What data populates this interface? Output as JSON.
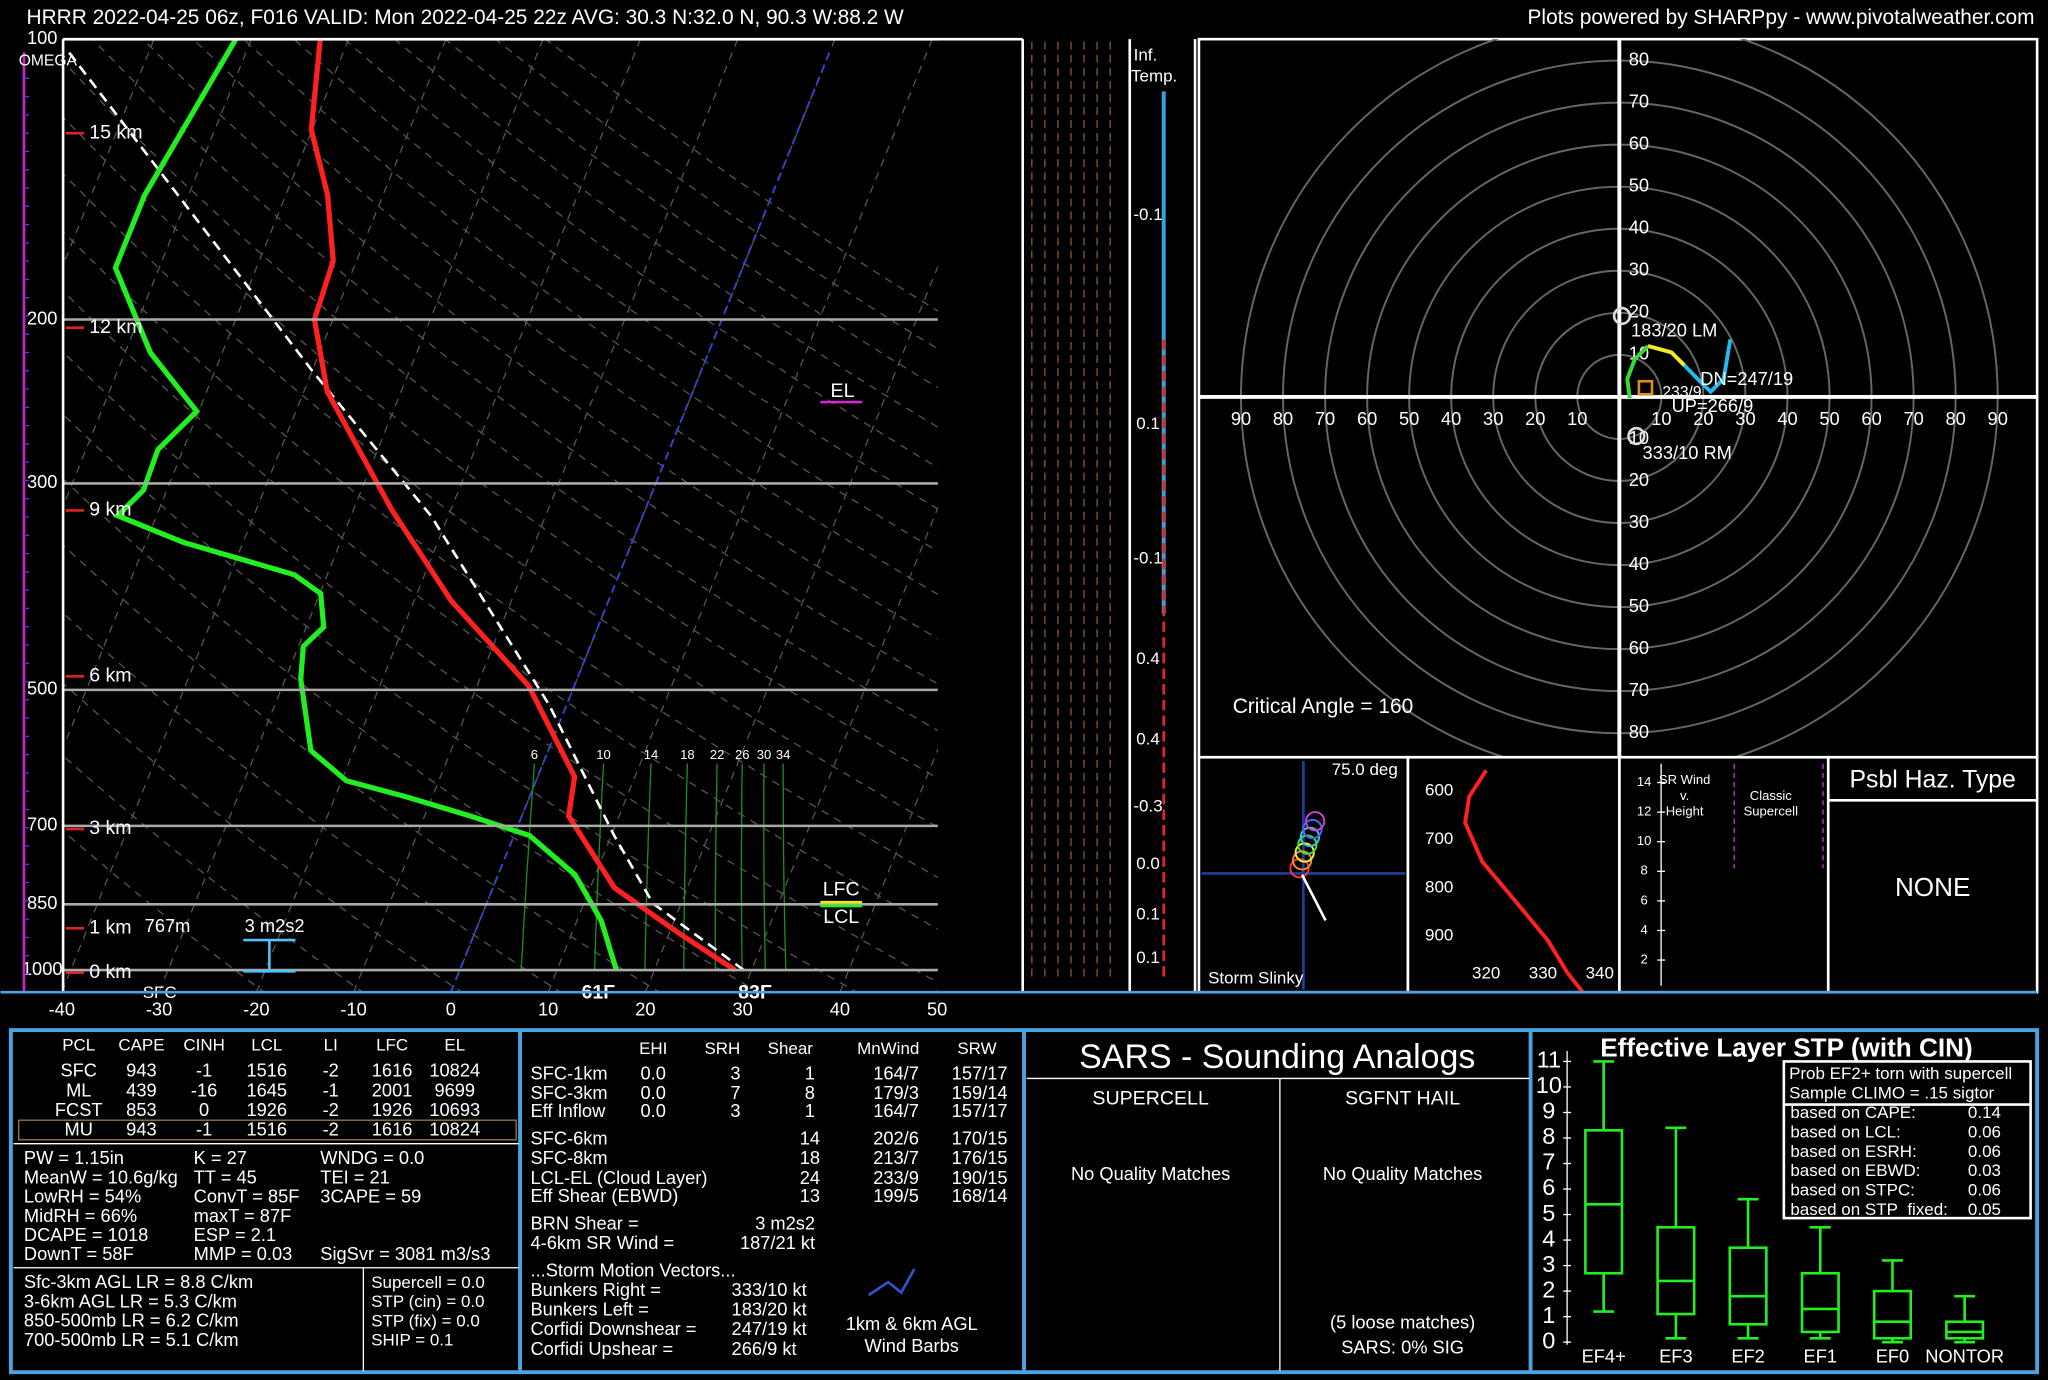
{
  "header": {
    "title": "HRRR 2022-04-25 06z, F016  VALID: Mon 2022-04-25 22z  AVG: 30.3 N:32.0 N, 90.3 W:88.2 W",
    "credit": "Plots powered by SHARPpy - www.pivotalweather.com"
  },
  "skewt": {
    "pressure_ticks": [
      100,
      200,
      300,
      500,
      700,
      850,
      1000
    ],
    "temp_ticks": [
      -40,
      -30,
      -20,
      -10,
      0,
      10,
      20,
      30,
      40,
      50
    ],
    "height_labels": [
      "15 km",
      "12 km",
      "9 km",
      "6 km",
      "3 km",
      "1 km",
      "0 km"
    ],
    "mixing_ratios": [
      6,
      10,
      14,
      18,
      22,
      26,
      30,
      34
    ],
    "omega": "OMEGA",
    "el": "EL",
    "lfc": "LFC",
    "lcl": "LCL",
    "sfc": "SFC",
    "depth": "767m",
    "srh": "3 m2s2",
    "sfc_dewpoint": "61F",
    "sfc_temp": "83F",
    "temperature": {
      "color": "#ff2020",
      "pressure": [
        1000,
        914,
        816,
        683,
        620,
        495,
        401,
        320,
        239,
        200,
        173,
        147,
        125,
        100
      ],
      "values": [
        28.3,
        21.1,
        12.5,
        4.8,
        3.8,
        -4.7,
        -16.2,
        -26.1,
        -37.6,
        -41.9,
        -42.4,
        -45.7,
        -50.1,
        -52.9
      ]
    },
    "dewpoint": {
      "color": "#22ee22",
      "pressure": [
        1000,
        885,
        790,
        717,
        683,
        651,
        626,
        581,
        487,
        449,
        428,
        394,
        376,
        347,
        325,
        305,
        276,
        251,
        217,
        176,
        147,
        100
      ],
      "values": [
        16.1,
        12.5,
        7.9,
        1.6,
        -5.3,
        -12.8,
        -19.5,
        -24.4,
        -28.4,
        -29.5,
        -28.2,
        -29.9,
        -33.4,
        -46.2,
        -54.0,
        -52.4,
        -52.6,
        -50.2,
        -57.4,
        -64.5,
        -64.5,
        -61.6
      ]
    },
    "parcel": {
      "color": "#ffffff",
      "pressure": [
        1000,
        848,
        717,
        519,
        325,
        228,
        102
      ],
      "values": [
        29.2,
        17.1,
        10.3,
        -1.8,
        -21.8,
        -39.8,
        -78.8
      ]
    }
  },
  "inflow_temp": {
    "title": [
      "Inf.",
      "Temp."
    ],
    "values": [
      "-0.1",
      "0.1",
      "-0.1",
      "0.4",
      "0.4",
      "-0.3",
      "0.0",
      "0.1",
      "0.1"
    ]
  },
  "hodograph": {
    "ring_labels": [
      10,
      20,
      30,
      40,
      50,
      60,
      70,
      80,
      90
    ],
    "lm": "183/20 LM",
    "rm": "333/10 RM",
    "dn": "DN=247/19",
    "up": "UP=266/9",
    "mean": "233/9",
    "critical_angle": "Critical Angle = 160",
    "trace": [
      {
        "color": "#33dd33",
        "u": [
          2.5,
          1.9,
          3.7,
          6.8
        ],
        "v": [
          -0.3,
          4.3,
          9.0,
          12.1
        ]
      },
      {
        "color": "#eeee22",
        "u": [
          6.8,
          12.4,
          15.5
        ],
        "v": [
          12.1,
          10.6,
          7.5
        ]
      },
      {
        "color": "#22bbee",
        "u": [
          15.5,
          18.6,
          21.7,
          24.8,
          26.4
        ],
        "v": [
          7.5,
          4.3,
          1.2,
          4.3,
          13.7
        ]
      }
    ]
  },
  "slinky": {
    "angle": "75.0 deg",
    "title": "Storm Slinky"
  },
  "theta": {
    "pressure_ticks": [
      600,
      700,
      800,
      900
    ],
    "theta_ticks": [
      320,
      330,
      340
    ],
    "pressure": [
      557,
      611,
      665,
      746,
      827,
      908,
      976,
      1016
    ],
    "values": [
      320.0,
      317.0,
      316.3,
      319.3,
      325.1,
      330.8,
      334.3,
      337.0
    ]
  },
  "sr_wind": {
    "height_ticks": [
      2,
      4,
      6,
      8,
      10,
      12,
      14
    ],
    "title": [
      "SR Wind",
      "v.",
      "Height"
    ],
    "classic": [
      "Classic",
      "Supercell"
    ]
  },
  "hazard": {
    "title": "Psbl Haz. Type",
    "value": "NONE"
  },
  "thermo": {
    "headers": [
      "PCL",
      "CAPE",
      "CINH",
      "LCL",
      "LI",
      "LFC",
      "EL"
    ],
    "rows": [
      [
        "SFC",
        "943",
        "-1",
        "1516",
        "-2",
        "1616",
        "10824"
      ],
      [
        "ML",
        "439",
        "-16",
        "1645",
        "-1",
        "2001",
        "9699"
      ],
      [
        "FCST",
        "853",
        "0",
        "1926",
        "-2",
        "1926",
        "10693"
      ],
      [
        "MU",
        "943",
        "-1",
        "1516",
        "-2",
        "1616",
        "10824"
      ]
    ],
    "indices": [
      [
        "PW = 1.15in",
        "MeanW = 10.6g/kg",
        "LowRH = 54%",
        "MidRH = 66%",
        "DCAPE = 1018",
        "DownT = 58F"
      ],
      [
        "K = 27",
        "TT = 45",
        "ConvT = 85F",
        "maxT = 87F",
        "ESP = 2.1",
        "MMP = 0.03"
      ],
      [
        "WNDG = 0.0",
        "TEI = 21",
        "3CAPE = 59",
        "SigSvr = 3081 m3/s3"
      ]
    ],
    "lapse_rates": [
      "Sfc-3km AGL LR = 8.8 C/km",
      "3-6km AGL LR = 5.3 C/km",
      "850-500mb LR = 6.2 C/km",
      "700-500mb LR = 5.1 C/km"
    ],
    "composites": [
      "Supercell = 0.0",
      "STP (cin) = 0.0",
      "STP (fix) = 0.0",
      "SHIP = 0.1"
    ]
  },
  "kinematics": {
    "headers": [
      "EHI",
      "SRH",
      "Shear",
      "MnWind",
      "SRW"
    ],
    "rows": [
      [
        "SFC-1km",
        "0.0",
        "3",
        "1",
        "164/7",
        "157/17"
      ],
      [
        "SFC-3km",
        "0.0",
        "7",
        "8",
        "179/3",
        "159/14"
      ],
      [
        "Eff Inflow",
        "0.0",
        "3",
        "1",
        "164/7",
        "157/17"
      ],
      [
        "SFC-6km",
        null,
        null,
        "14",
        "202/6",
        "170/15"
      ],
      [
        "SFC-8km",
        null,
        null,
        "18",
        "213/7",
        "176/15"
      ],
      [
        "LCL-EL (Cloud Layer)",
        null,
        null,
        "24",
        "233/9",
        "190/15"
      ],
      [
        "Eff Shear (EBWD)",
        null,
        null,
        "13",
        "199/5",
        "168/14"
      ]
    ],
    "brn": [
      "BRN Shear =",
      "3 m2s2"
    ],
    "sr_wind": [
      "4-6km SR Wind =",
      "187/21 kt"
    ],
    "storm_motion_title": "...Storm Motion Vectors...",
    "storm_motion": [
      [
        "Bunkers Right =",
        "333/10 kt"
      ],
      [
        "Bunkers Left =",
        "183/20 kt"
      ],
      [
        "Corfidi Downshear =",
        "247/19 kt"
      ],
      [
        "Corfidi Upshear =",
        "266/9 kt"
      ]
    ],
    "barb_note": [
      "1km & 6km AGL",
      "Wind Barbs"
    ]
  },
  "sars": {
    "title": "SARS - Sounding Analogs",
    "supercell": {
      "title": "SUPERCELL",
      "matches": "No Quality Matches"
    },
    "hail": {
      "title": "SGFNT HAIL",
      "matches": "No Quality Matches",
      "loose": "(5 loose matches)",
      "sig": "SARS: 0% SIG"
    }
  },
  "stp": {
    "title": "Effective Layer STP (with CIN)",
    "ylim": [
      0,
      11
    ],
    "yticks": [
      0,
      1,
      2,
      3,
      4,
      5,
      6,
      7,
      8,
      9,
      10,
      11
    ],
    "categories": [
      "EF4+",
      "EF3",
      "EF2",
      "EF1",
      "EF0",
      "NONTOR"
    ],
    "color": "#22ee22",
    "whisker_low": [
      1.2,
      0.15,
      0.15,
      0.15,
      0,
      0
    ],
    "q1": [
      2.7,
      1.1,
      0.7,
      0.4,
      0.15,
      0.15
    ],
    "median": [
      5.4,
      2.4,
      1.8,
      1.3,
      0.8,
      0.4
    ],
    "q3": [
      8.3,
      4.5,
      3.7,
      2.7,
      2.0,
      0.8
    ],
    "whisker_high": [
      11.0,
      8.4,
      5.6,
      4.5,
      3.2,
      1.8
    ],
    "climo": {
      "title": [
        "Prob EF2+ torn with supercell",
        "Sample CLIMO = .15 sigtor"
      ],
      "rows": [
        {
          "label": "based on CAPE:",
          "value": 0.14
        },
        {
          "label": "based on LCL:",
          "value": 0.06
        },
        {
          "label": "based on ESRH:",
          "value": 0.06
        },
        {
          "label": "based on EBWD:",
          "value": 0.03
        },
        {
          "label": "based on STPC:",
          "value": 0.06
        },
        {
          "label": "based on STP_fixed:",
          "value": 0.05
        }
      ]
    }
  }
}
